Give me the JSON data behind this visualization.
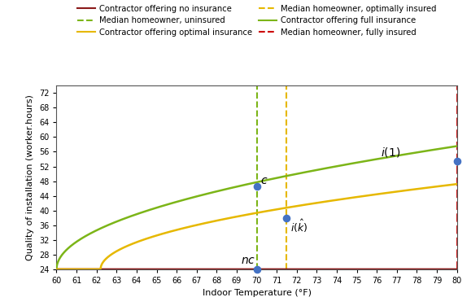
{
  "x_min": 60,
  "x_max": 80,
  "y_min": 24,
  "y_max": 74,
  "y_ticks": [
    24,
    28,
    32,
    36,
    40,
    44,
    48,
    52,
    56,
    60,
    64,
    68,
    72
  ],
  "x_ticks": [
    60,
    61,
    62,
    63,
    64,
    65,
    66,
    67,
    68,
    69,
    70,
    71,
    72,
    73,
    74,
    75,
    76,
    77,
    78,
    79,
    80
  ],
  "xlabel": "Indoor Temperature (°F)",
  "ylabel": "Quality of installation (worker.hours)",
  "color_no_ins": "#8B1A1A",
  "color_opt_ins": "#E6B800",
  "color_full_ins": "#7CB518",
  "color_vline_unins": "#7CB518",
  "color_vline_opt": "#E6B800",
  "color_vline_full": "#CC0000",
  "vline_unins_x": 70.0,
  "vline_opt_x": 71.5,
  "vline_full_x": 80.0,
  "no_ins_y": 24,
  "nc_point": [
    70.0,
    24
  ],
  "c_point": [
    70.0,
    46.5
  ],
  "ik_point": [
    71.5,
    38.0
  ],
  "i1_point": [
    80.0,
    53.5
  ],
  "full_ins_scale": 7.5,
  "full_ins_shift": 24,
  "full_ins_x0": 60.0,
  "opt_ins_scale": 5.5,
  "opt_ins_shift": 24,
  "opt_ins_x0": 62.2,
  "legend_labels": [
    "Contractor offering no insurance",
    "Contractor offering optimal insurance",
    "Contractor offering full insurance",
    "Median homeowner, uninsured",
    "Median homeowner, optimally insured",
    "Median homeowner, fully insured"
  ],
  "dot_color": "#4472C4",
  "dot_size": 35,
  "bg_color": "#FFFFFF"
}
